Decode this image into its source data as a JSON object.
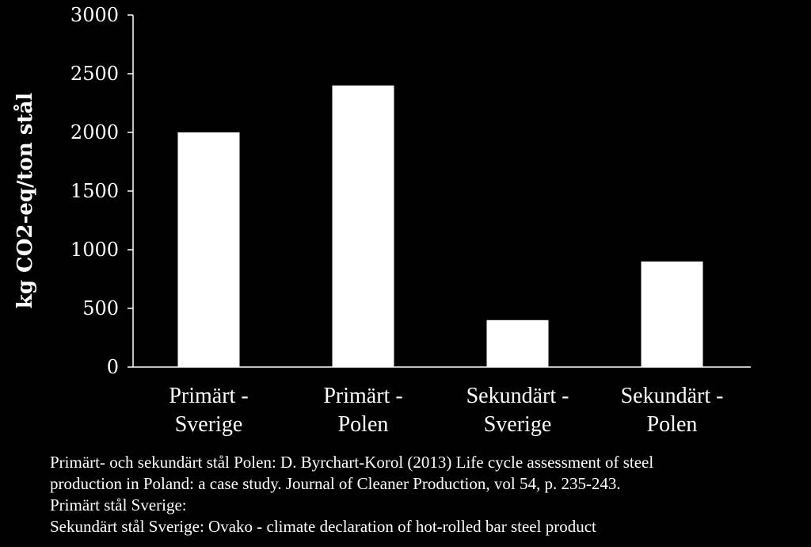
{
  "chart_data": {
    "type": "bar",
    "categories": [
      [
        "Primärt -",
        "Sverige"
      ],
      [
        "Primärt -",
        "Polen"
      ],
      [
        "Sekundärt -",
        "Sverige"
      ],
      [
        "Sekundärt -",
        "Polen"
      ]
    ],
    "values": [
      2000,
      2400,
      400,
      900
    ],
    "ylabel": "kg CO2-eq/ton stål",
    "xlabel": "",
    "ylim": [
      0,
      3000
    ],
    "yticks": [
      0,
      500,
      1000,
      1500,
      2000,
      2500,
      3000
    ],
    "grid": false,
    "colors": {
      "background": "#000000",
      "bar": "#ffffff",
      "axis": "#ffffff",
      "text": "#ffffff"
    }
  },
  "sources": [
    "Primärt- och sekundärt stål Polen: D. Byrchart-Korol (2013) Life cycle assessment of steel",
    "production in Poland: a case study. Journal of Cleaner Production, vol 54, p. 235-243.",
    "Primärt stål Sverige:",
    "Sekundärt stål Sverige: Ovako - climate declaration of hot-rolled bar steel product"
  ]
}
